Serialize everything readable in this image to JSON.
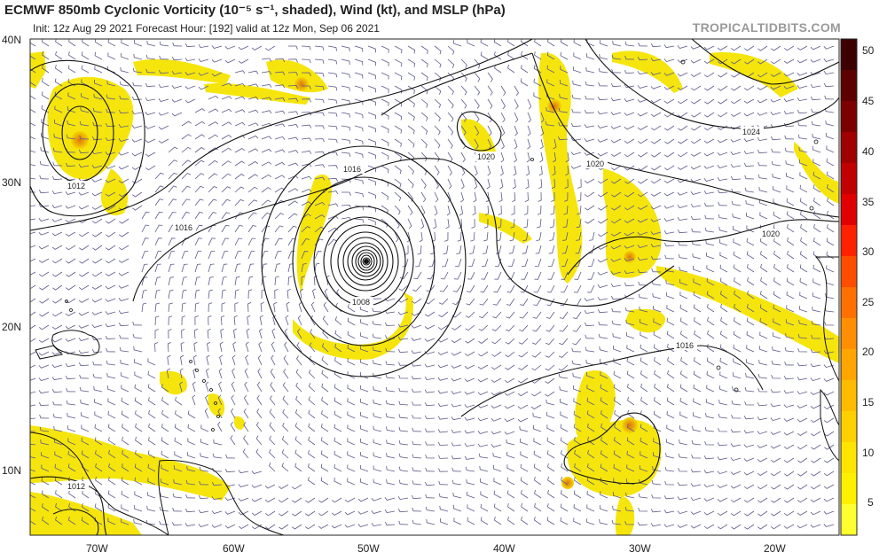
{
  "header": {
    "title": "ECMWF 850mb Cyclonic Vorticity (10⁻⁵ s⁻¹, shaded), Wind (kt), and MSLP (hPa)",
    "subtitle": "Init: 12z Aug 29 2021   Forecast Hour: [192]   valid at 12z Mon, Sep 06 2021",
    "brand": "TROPICALTIDBITS.COM"
  },
  "map": {
    "lat_labels": [
      "40N",
      "30N",
      "20N",
      "10N"
    ],
    "lon_labels": [
      "70W",
      "60W",
      "50W",
      "40W",
      "30W",
      "20W"
    ],
    "contour_labels": [
      "1016",
      "1016",
      "1012",
      "1020",
      "1020",
      "1024",
      "1020",
      "1008",
      "1016",
      "1012"
    ],
    "colors": {
      "shade_light": "#f5e400",
      "shade_mid": "#f2b200",
      "shade_orange": "#e06d10",
      "contour": "#111111",
      "barb": "#5a5a8a",
      "land": "#ffffff"
    }
  },
  "colorbar": {
    "labels": [
      "50",
      "45",
      "40",
      "35",
      "30",
      "25",
      "20",
      "15",
      "10",
      "5"
    ],
    "colors": [
      "#3d0000",
      "#5c0000",
      "#7d0000",
      "#a00000",
      "#c10000",
      "#e00000",
      "#ff2200",
      "#ff4d00",
      "#ff7000",
      "#ff8f00",
      "#ffa500",
      "#ffbb00",
      "#ffd000",
      "#ffe400",
      "#fff000",
      "#ffff30"
    ]
  }
}
